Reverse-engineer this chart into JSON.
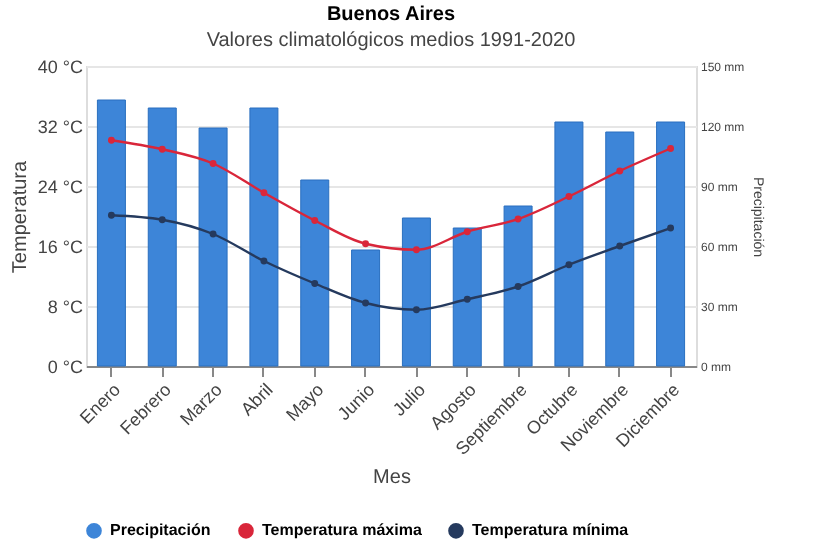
{
  "chart_data": {
    "type": "bar",
    "title": "Buenos Aires",
    "subtitle": "Valores climatológicos medios 1991-2020",
    "xlabel": "Mes",
    "ylabel": "Temperatura",
    "y2label": "Precipitación",
    "categories": [
      "Enero",
      "Febrero",
      "Marzo",
      "Abril",
      "Mayo",
      "Junio",
      "Julio",
      "Agosto",
      "Septiembre",
      "Octubre",
      "Noviembre",
      "Diciembre"
    ],
    "series": [
      {
        "name": "Precipitación",
        "color": "#3d85d8",
        "axis": "y2",
        "values": [
          133,
          129,
          119,
          129,
          93,
          58,
          74,
          69,
          80,
          122,
          117,
          122
        ]
      },
      {
        "name": "Temperatura máxima",
        "color": "#d9263a",
        "type": "line",
        "values": [
          30.1,
          28.9,
          27.0,
          23.1,
          19.4,
          16.3,
          15.5,
          17.9,
          19.6,
          22.6,
          26.0,
          29.0
        ]
      },
      {
        "name": "Temperatura mínima",
        "color": "#253a5e",
        "type": "line",
        "values": [
          20.1,
          19.5,
          17.6,
          14.0,
          11.0,
          8.4,
          7.5,
          8.9,
          10.6,
          13.5,
          16.0,
          18.4
        ]
      }
    ],
    "ylim": [
      0,
      40
    ],
    "yticks": [
      {
        "value": 0,
        "label": "0 °C"
      },
      {
        "value": 8,
        "label": "8 °C"
      },
      {
        "value": 16,
        "label": "16 °C"
      },
      {
        "value": 24,
        "label": "24 °C"
      },
      {
        "value": 32,
        "label": "32 °C"
      },
      {
        "value": 40,
        "label": "40 °C"
      }
    ],
    "y2lim": [
      0,
      150
    ],
    "y2ticks": [
      {
        "value": 0,
        "label": "0 mm"
      },
      {
        "value": 30,
        "label": "30 mm"
      },
      {
        "value": 60,
        "label": "60 mm"
      },
      {
        "value": 90,
        "label": "90 mm"
      },
      {
        "value": 120,
        "label": "120 mm"
      },
      {
        "value": 150,
        "label": "150 mm"
      }
    ],
    "grid": "y",
    "legend": "bottom",
    "marker": "circle",
    "line_style": "solid"
  }
}
